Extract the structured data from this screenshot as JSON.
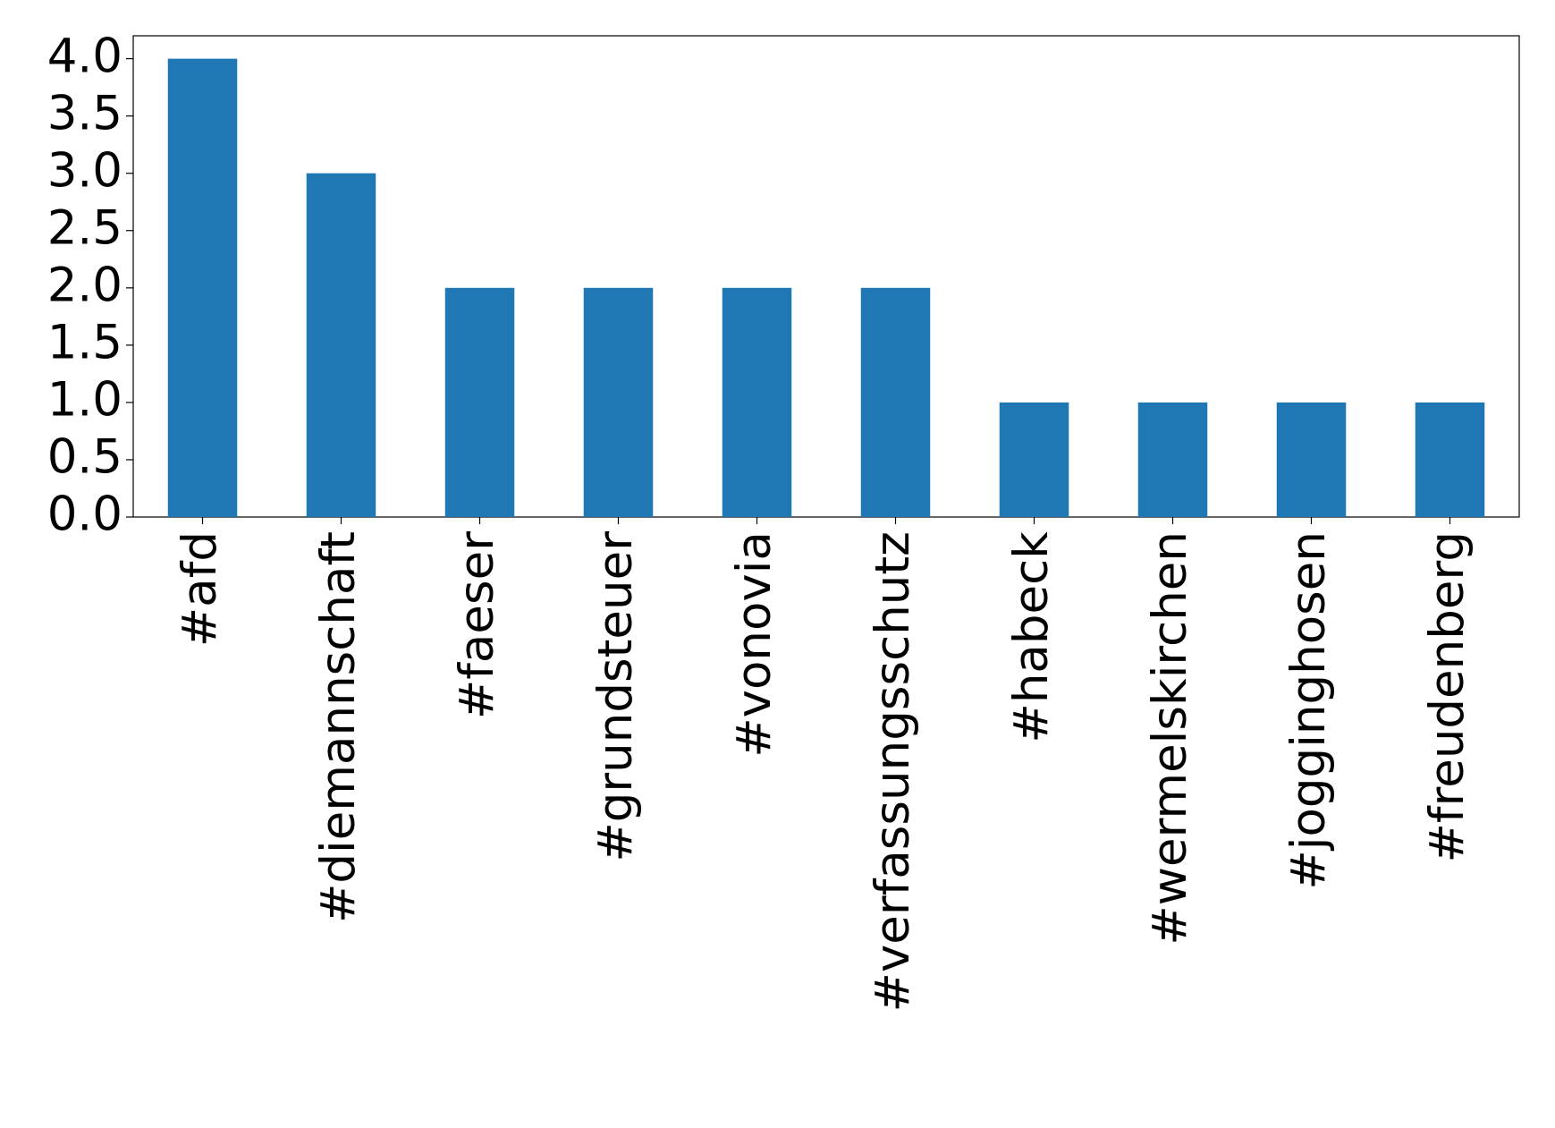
{
  "chart_data": {
    "type": "bar",
    "categories": [
      "#afd",
      "#diemannschaft",
      "#faeser",
      "#grundsteuer",
      "#vonovia",
      "#verfassungsschutz",
      "#habeck",
      "#wermelskirchen",
      "#jogginghosen",
      "#freudenberg"
    ],
    "values": [
      4,
      3,
      2,
      2,
      2,
      2,
      1,
      1,
      1,
      1
    ],
    "color": "#1f77b4",
    "ylim": [
      0,
      4.2
    ],
    "yticks": [
      {
        "value": 0,
        "label": "0.0"
      },
      0.5,
      {
        "value": 1,
        "label": "1.0"
      },
      1.5,
      {
        "value": 2,
        "label": "2.0"
      },
      2.5,
      {
        "value": 3,
        "label": "3.0"
      },
      3.5,
      {
        "value": 4,
        "label": "4.0"
      }
    ],
    "grid": false
  }
}
